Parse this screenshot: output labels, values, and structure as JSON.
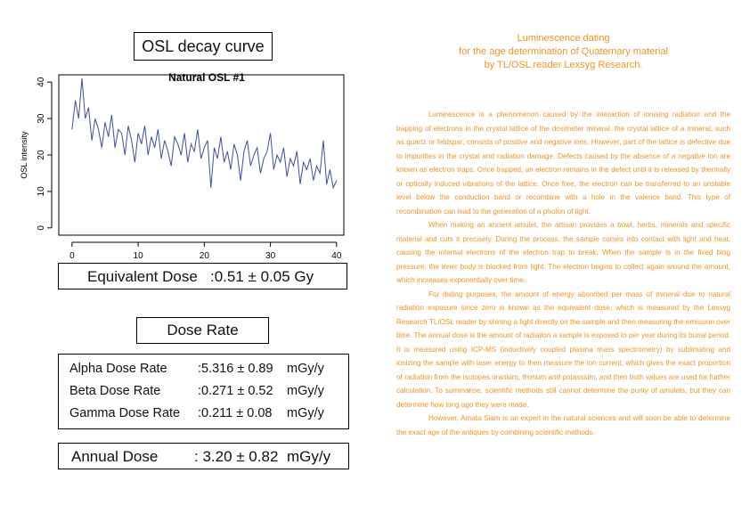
{
  "chart_data": {
    "type": "line",
    "section_title": "OSL decay curve",
    "title": "Natural OSL #1",
    "ylabel": "OSL intensity",
    "color": "#3d4fa3",
    "x": [
      0,
      0.5,
      1,
      1.5,
      2,
      2.5,
      3,
      3.5,
      4,
      4.5,
      5,
      5.5,
      6,
      6.5,
      7,
      7.5,
      8,
      8.5,
      9,
      9.5,
      10,
      10.5,
      11,
      11.5,
      12,
      12.5,
      13,
      13.5,
      14,
      14.5,
      15,
      15.5,
      16,
      16.5,
      17,
      17.5,
      18,
      18.5,
      19,
      19.5,
      20,
      20.5,
      21,
      21.5,
      22,
      22.5,
      23,
      23.5,
      24,
      24.5,
      25,
      25.5,
      26,
      26.5,
      27,
      27.5,
      28,
      28.5,
      29,
      29.5,
      30,
      30.5,
      31,
      31.5,
      32,
      32.5,
      33,
      33.5,
      34,
      34.5,
      35,
      35.5,
      36,
      36.5,
      37,
      37.5,
      38,
      38.5,
      39,
      39.5,
      40
    ],
    "values": [
      27,
      35,
      30,
      41,
      30,
      33,
      24,
      30,
      27,
      22,
      29,
      25,
      31,
      22,
      27,
      26,
      20,
      28,
      24,
      18,
      26,
      23,
      28,
      20,
      25,
      22,
      27,
      19,
      24,
      21,
      17,
      25,
      23,
      20,
      26,
      18,
      23,
      21,
      27,
      19,
      22,
      24,
      11,
      22,
      19,
      25,
      18,
      21,
      16,
      23,
      20,
      13,
      21,
      24,
      17,
      20,
      22,
      15,
      19,
      21,
      26,
      16,
      20,
      18,
      22,
      14,
      19,
      17,
      21,
      12,
      18,
      16,
      19,
      13,
      17,
      15,
      24,
      12,
      16,
      11,
      13
    ],
    "xlim": [
      -2,
      41.1
    ],
    "ylim": [
      -2,
      42
    ],
    "xticks": [
      0,
      10,
      20,
      30,
      40
    ],
    "yticks": [
      0,
      10,
      20,
      30,
      40
    ]
  },
  "results": {
    "equivalent_dose": {
      "label": "Equivalent Dose",
      "value": ":0.51 ± 0.05 Gy"
    },
    "dose_rate_title": "Dose Rate",
    "dose_rates": [
      {
        "label": "Alpha Dose Rate",
        "value": ":5.316 ± 0.89",
        "unit": "mGy/y"
      },
      {
        "label": "Beta Dose Rate",
        "value": ":0.271 ± 0.52",
        "unit": "mGy/y"
      },
      {
        "label": "Gamma Dose Rate",
        "value": ":0.211 ± 0.08",
        "unit": "mGy/y"
      }
    ],
    "annual_dose": {
      "label": "Annual Dose",
      "value": ": 3.20 ± 0.82",
      "unit": "mGy/y"
    }
  },
  "article": {
    "heading": [
      "Luminescence dating",
      "for the age determination of Quaternary material",
      "by TL/OSL reader Lexsyg Research."
    ],
    "paragraphs": [
      "Luminescence is a phenomenon caused by the interaction of ionising radiation and the trapping of electrons in the crystal lattice of the dosimeter mineral. the crystal lattice of a mineral, such as quartz or feldspar, consists of positive and negative ions. However, part of the lattice is defective due to impurities in the crystal and radiation damage. Defects caused by the absence of a negative ion are known as electron traps. Once trapped, an electron remains in the defect until it is released by thermally or optically induced vibrations of the lattice. Once free, the electron can be transferred to an unstable level below the conduction band or recombine with a hole in the valence band. This type of recombination can lead to the generation of a photon of light.",
      "When making an ancient amulet, the artisan provides a bowl, herbs, minerals and specific material and cuts it precisely. During the process, the sample comes into contact with light and heat, causing the internal electrons of the electron trap to break. When the sample is in the fixed blog pressure, the inner body is blocked from light. The electron begins to collect again around the amount, which increases exponentially over time.",
      "For dating purposes, the amount of energy absorbed per mass of mineral due to natural radiation exposure since zero is known as the equivalent dose, which is measured by the Lexsyg Research TL/OSL reader by shining a light directly on the sample and then measuring the emission over time. The annual dose is the amount of radiation a sample is exposed to per year during its burial period. It is measured using ICP-MS (inductively coupled plasma mass spectrometry) by sublimating and ionizing the sample with laser energy to then measure the ion current, which gives the exact proportion of radiation from the isotopes uranium, thorium and potassium, and then both values are used for further calculation. To summarise, scientific methods still cannot determine the purity of amulets, but they can determine how long ago they were made.",
      "However, Amata Siam is an expert in the natural sciences and will soon be able to determine the exact age of the antiques by combining scientific methods."
    ]
  }
}
